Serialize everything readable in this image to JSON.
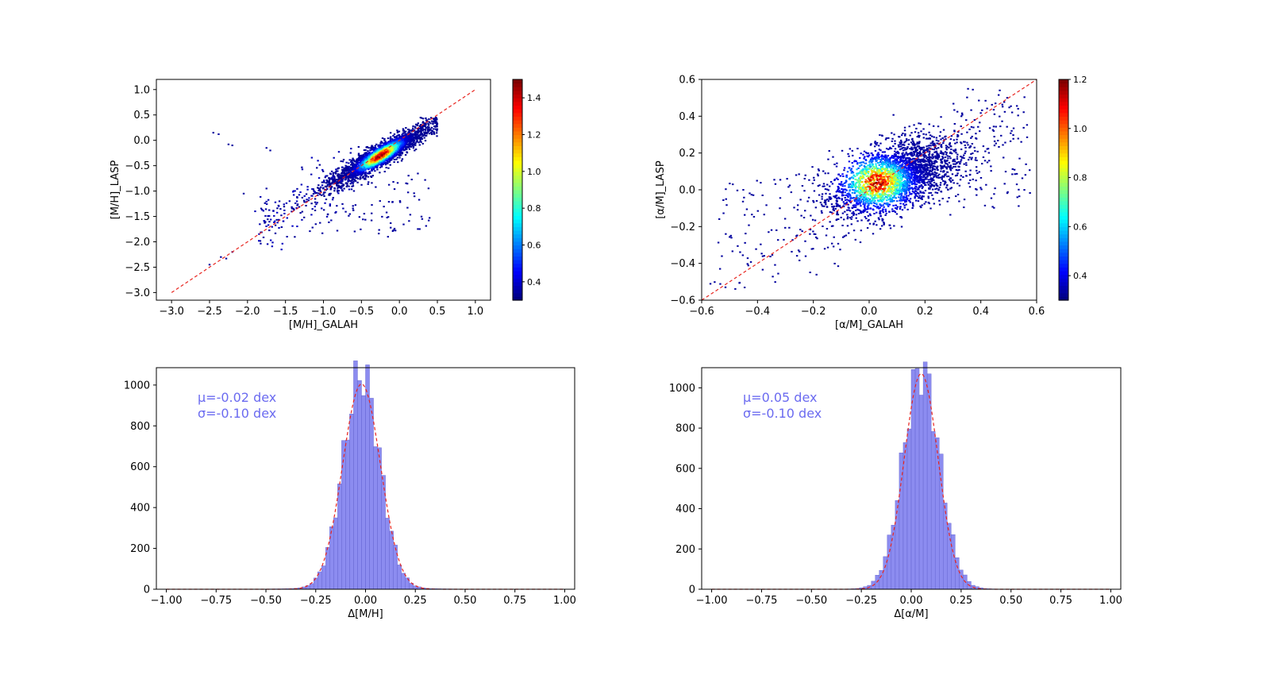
{
  "chart_data": [
    {
      "id": "mh_scatter",
      "type": "heatmap",
      "xlabel": "[M/H]_GALAH",
      "ylabel": "[M/H]_LASP",
      "xlim": [
        -3.2,
        1.2
      ],
      "ylim": [
        -3.15,
        1.2
      ],
      "xticks": [
        "−3.0",
        "−2.5",
        "−2.0",
        "−1.5",
        "−1.0",
        "−0.5",
        "0.0",
        "0.5",
        "1.0"
      ],
      "xtick_values": [
        -3.0,
        -2.5,
        -2.0,
        -1.5,
        -1.0,
        -0.5,
        0.0,
        0.5,
        1.0
      ],
      "yticks": [
        "−3.0",
        "−2.5",
        "−2.0",
        "−1.5",
        "−1.0",
        "−0.5",
        "0.0",
        "0.5",
        "1.0"
      ],
      "ytick_values": [
        -3.0,
        -2.5,
        -2.0,
        -1.5,
        -1.0,
        -0.5,
        0.0,
        0.5,
        1.0
      ],
      "one_to_one_line": [
        [
          -3.0,
          -3.0
        ],
        [
          1.0,
          1.0
        ]
      ],
      "colorbar": {
        "range": [
          0.3,
          1.5
        ],
        "ticks": [
          "0.4",
          "0.6",
          "0.8",
          "1.0",
          "1.2",
          "1.4"
        ],
        "tick_values": [
          0.4,
          0.6,
          0.8,
          1.0,
          1.2,
          1.4
        ],
        "cmap": "jet"
      },
      "density_center": [
        -0.25,
        -0.3
      ],
      "density_slope": 0.85,
      "grid": false
    },
    {
      "id": "am_scatter",
      "type": "heatmap",
      "xlabel": "[α/M]_GALAH",
      "ylabel": "[α/M]_LASP",
      "xlim": [
        -0.6,
        0.6
      ],
      "ylim": [
        -0.6,
        0.6
      ],
      "xticks": [
        "−0.6",
        "−0.4",
        "−0.2",
        "0.0",
        "0.2",
        "0.4",
        "0.6"
      ],
      "xtick_values": [
        -0.6,
        -0.4,
        -0.2,
        0.0,
        0.2,
        0.4,
        0.6
      ],
      "yticks": [
        "−0.6",
        "−0.4",
        "−0.2",
        "0.0",
        "0.2",
        "0.4",
        "0.6"
      ],
      "ytick_values": [
        -0.6,
        -0.4,
        -0.2,
        0.0,
        0.2,
        0.4,
        0.6
      ],
      "one_to_one_line": [
        [
          -0.6,
          -0.6
        ],
        [
          0.6,
          0.6
        ]
      ],
      "colorbar": {
        "range": [
          0.3,
          1.2
        ],
        "ticks": [
          "0.4",
          "0.6",
          "0.8",
          "1.0",
          "1.2"
        ],
        "tick_values": [
          0.4,
          0.6,
          0.8,
          1.0,
          1.2
        ],
        "cmap": "jet"
      },
      "density_center": [
        0.05,
        0.05
      ],
      "grid": false
    },
    {
      "id": "mh_hist",
      "type": "bar",
      "xlabel": "Δ[M/H]",
      "ylabel": "",
      "xlim": [
        -1.05,
        1.05
      ],
      "ylim": [
        0,
        1085
      ],
      "xticks": [
        "−1.00",
        "−0.75",
        "−0.50",
        "−0.25",
        "0.00",
        "0.25",
        "0.50",
        "0.75",
        "1.00"
      ],
      "xtick_values": [
        -1.0,
        -0.75,
        -0.5,
        -0.25,
        0.0,
        0.25,
        0.5,
        0.75,
        1.0
      ],
      "yticks": [
        "0",
        "200",
        "400",
        "600",
        "800",
        "1000"
      ],
      "ytick_values": [
        0,
        200,
        400,
        600,
        800,
        1000
      ],
      "bin_width": 0.02,
      "mean": -0.02,
      "sigma": 0.1,
      "peak": 1040,
      "fit_peak": 1005,
      "fit_sigma": 0.095,
      "annotations": [
        "μ=-0.02 dex",
        "σ=-0.10 dex"
      ],
      "bar_color": "#8080ee",
      "fit_color": "#e8251f",
      "grid": false
    },
    {
      "id": "am_hist",
      "type": "bar",
      "xlabel": "Δ[α/M]",
      "ylabel": "",
      "xlim": [
        -1.05,
        1.05
      ],
      "ylim": [
        0,
        1100
      ],
      "xticks": [
        "−1.00",
        "−0.75",
        "−0.50",
        "−0.25",
        "0.00",
        "0.25",
        "0.50",
        "0.75",
        "1.00"
      ],
      "xtick_values": [
        -1.0,
        -0.75,
        -0.5,
        -0.25,
        0.0,
        0.25,
        0.5,
        0.75,
        1.0
      ],
      "yticks": [
        "0",
        "200",
        "400",
        "600",
        "800",
        "1000"
      ],
      "ytick_values": [
        0,
        200,
        400,
        600,
        800,
        1000
      ],
      "bin_width": 0.02,
      "mean": 0.05,
      "sigma": 0.1,
      "peak": 1085,
      "fit_peak": 1070,
      "fit_sigma": 0.085,
      "annotations": [
        "μ=0.05 dex",
        "σ=-0.10 dex"
      ],
      "bar_color": "#8080ee",
      "fit_color": "#e8251f",
      "grid": false
    }
  ]
}
